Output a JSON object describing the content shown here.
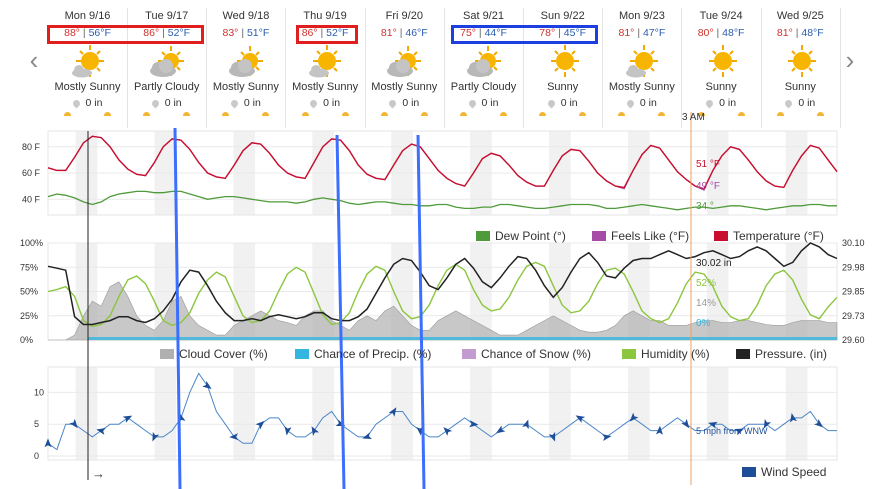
{
  "nav": {
    "prev_icon": "chevron-left-icon",
    "next_icon": "chevron-right-icon",
    "prev": "‹",
    "next": "›"
  },
  "days": [
    {
      "date": "Mon 9/16",
      "hi": "88°",
      "lo": "56°F",
      "cond": "Mostly Sunny",
      "precip": "0 in",
      "icon": "sun-icon"
    },
    {
      "date": "Tue 9/17",
      "hi": "86°",
      "lo": "52°F",
      "cond": "Partly Cloudy",
      "precip": "0 in",
      "icon": "sun-cloud-icon"
    },
    {
      "date": "Wed 9/18",
      "hi": "83°",
      "lo": "51°F",
      "cond": "Mostly Sunny",
      "precip": "0 in",
      "icon": "sun-cloud-icon"
    },
    {
      "date": "Thu 9/19",
      "hi": "86°",
      "lo": "52°F",
      "cond": "Mostly Sunny",
      "precip": "0 in",
      "icon": "sun-icon"
    },
    {
      "date": "Fri 9/20",
      "hi": "81°",
      "lo": "46°F",
      "cond": "Mostly Sunny",
      "precip": "0 in",
      "icon": "sun-cloud-icon"
    },
    {
      "date": "Sat 9/21",
      "hi": "75°",
      "lo": "44°F",
      "cond": "Partly Cloudy",
      "precip": "0 in",
      "icon": "sun-cloud-icon"
    },
    {
      "date": "Sun 9/22",
      "hi": "78°",
      "lo": "45°F",
      "cond": "Sunny",
      "precip": "0 in",
      "icon": "sun-icon"
    },
    {
      "date": "Mon 9/23",
      "hi": "81°",
      "lo": "47°F",
      "cond": "Mostly Sunny",
      "precip": "0 in",
      "icon": "sun-icon"
    },
    {
      "date": "Tue 9/24",
      "hi": "80°",
      "lo": "48°F",
      "cond": "Sunny",
      "precip": "0 in",
      "icon": "sun-icon"
    },
    {
      "date": "Wed 9/25",
      "hi": "81°",
      "lo": "48°F",
      "cond": "Sunny",
      "precip": "0 in",
      "icon": "sun-icon"
    }
  ],
  "cursor_time": "3 AM",
  "colors": {
    "temperature": "#c8102e",
    "feels_like": "#a64ca6",
    "dew_point": "#4f9a3a",
    "cloud_cover": "#b0b0b0",
    "precip_chance": "#35b6e0",
    "snow_chance": "#c49bd0",
    "humidity": "#8cc63f",
    "pressure": "#222222",
    "wind": "#4a86c8",
    "wind_arrow": "#1f4e99",
    "box_red": "#e01e1e",
    "box_blue": "#1e3fe0",
    "overlay_line": "#3d6fff",
    "cursor_line": "#f0a060"
  },
  "chart_data": [
    {
      "type": "line",
      "y_ticks": [
        "80 F",
        "60 F",
        "40 F"
      ],
      "ylim": [
        28,
        92
      ],
      "series": [
        {
          "name": "Temperature (°F)",
          "values": [
            64,
            62,
            62,
            72,
            83,
            88,
            87,
            80,
            70,
            63,
            59,
            58,
            68,
            80,
            86,
            85,
            78,
            68,
            60,
            57,
            56,
            66,
            77,
            83,
            82,
            75,
            66,
            60,
            57,
            56,
            68,
            80,
            86,
            85,
            77,
            66,
            59,
            56,
            55,
            66,
            77,
            82,
            80,
            71,
            62,
            56,
            52,
            50,
            60,
            71,
            75,
            73,
            66,
            58,
            53,
            50,
            50,
            62,
            73,
            78,
            77,
            69,
            60,
            54,
            50,
            49,
            62,
            74,
            81,
            79,
            70,
            61,
            55,
            50,
            48,
            62,
            73,
            80,
            78,
            70,
            61,
            54,
            50,
            49,
            62,
            73,
            81,
            79,
            70,
            61
          ]
        },
        {
          "name": "Feels Like (°F)",
          "values": [
            64,
            62,
            62,
            72,
            83,
            88,
            87,
            80,
            70,
            63,
            59,
            58,
            68,
            80,
            86,
            85,
            78,
            68,
            60,
            57,
            56,
            66,
            77,
            83,
            82,
            75,
            66,
            60,
            57,
            56,
            68,
            80,
            86,
            85,
            77,
            66,
            59,
            56,
            55,
            66,
            77,
            82,
            80,
            71,
            62,
            56,
            52,
            50,
            60,
            71,
            75,
            73,
            66,
            58,
            53,
            50,
            50,
            62,
            73,
            78,
            77,
            69,
            60,
            54,
            50,
            48,
            62,
            74,
            81,
            79,
            70,
            61,
            55,
            50,
            47,
            62,
            73,
            80,
            78,
            70,
            61,
            54,
            50,
            49,
            62,
            73,
            81,
            79,
            70,
            61
          ]
        },
        {
          "name": "Dew Point (°)",
          "values": [
            42,
            44,
            43,
            41,
            38,
            36,
            38,
            42,
            44,
            45,
            46,
            46,
            45,
            45,
            46,
            46,
            44,
            42,
            40,
            41,
            42,
            42,
            41,
            40,
            39,
            38,
            38,
            38,
            37,
            38,
            40,
            41,
            40,
            39,
            37,
            36,
            37,
            38,
            38,
            37,
            36,
            36,
            35,
            35,
            36,
            36,
            34,
            33,
            33,
            34,
            34,
            36,
            36,
            35,
            34,
            33,
            33,
            34,
            35,
            36,
            36,
            36,
            35,
            33,
            33,
            34,
            35,
            36,
            35,
            34,
            33,
            32,
            33,
            34,
            34,
            33,
            34,
            35,
            35,
            34,
            33,
            32,
            33,
            34,
            35,
            35,
            36,
            36,
            35,
            35
          ]
        }
      ],
      "readouts": {
        "temperature": "51 °F",
        "feels_like": "49 °F",
        "dew_point": "34 °"
      },
      "legend": [
        "Dew Point (°)",
        "Feels Like (°F)",
        "Temperature (°F)"
      ]
    },
    {
      "type": "line",
      "y_ticks_left": [
        "100%",
        "75%",
        "50%",
        "25%",
        "0%"
      ],
      "y_ticks_right": [
        "30.10",
        "29.98",
        "29.85",
        "29.73",
        "29.60"
      ],
      "pressure_range": [
        29.6,
        30.1
      ],
      "series": [
        {
          "name": "Cloud Cover (%)",
          "values": [
            0,
            0,
            0,
            5,
            25,
            40,
            35,
            55,
            60,
            45,
            25,
            15,
            10,
            20,
            40,
            45,
            25,
            15,
            10,
            5,
            5,
            15,
            20,
            25,
            30,
            25,
            20,
            18,
            15,
            25,
            30,
            30,
            20,
            15,
            10,
            20,
            25,
            20,
            30,
            35,
            25,
            15,
            10,
            10,
            20,
            25,
            30,
            25,
            20,
            15,
            10,
            5,
            5,
            5,
            10,
            15,
            20,
            25,
            20,
            15,
            10,
            8,
            8,
            10,
            15,
            25,
            30,
            25,
            20,
            20,
            15,
            15,
            15,
            18,
            20,
            20,
            18,
            18,
            20,
            20,
            18,
            16,
            15,
            15,
            18,
            20,
            20,
            20,
            18,
            18
          ]
        },
        {
          "name": "Chance of Precip. (%)",
          "values": [
            0,
            0,
            0,
            0,
            0,
            0,
            0,
            0,
            0,
            0,
            0,
            0,
            0,
            0,
            0,
            0,
            0,
            0,
            0,
            0,
            0,
            0,
            0,
            0,
            0,
            0,
            0,
            0,
            0,
            0,
            0,
            0,
            0,
            0,
            0,
            0,
            0,
            0,
            0,
            0,
            0,
            0,
            0,
            0,
            0,
            0,
            0,
            0,
            0,
            0,
            0,
            0,
            0,
            0,
            0,
            0,
            0,
            0,
            0,
            0,
            0,
            0,
            0,
            0,
            0,
            0,
            0,
            0,
            0,
            0,
            0,
            0,
            0,
            0,
            0,
            0,
            0,
            0,
            0,
            0,
            0,
            0,
            0,
            0,
            0,
            0,
            0,
            0,
            0,
            0
          ]
        },
        {
          "name": "Chance of Snow (%)",
          "values": [
            0,
            0,
            0,
            0,
            0,
            0,
            0,
            0,
            0,
            0,
            0,
            0,
            0,
            0,
            0,
            0,
            0,
            0,
            0,
            0,
            0,
            0,
            0,
            0,
            0,
            0,
            0,
            0,
            0,
            0,
            0,
            0,
            0,
            0,
            0,
            0,
            0,
            0,
            0,
            0,
            0,
            0,
            0,
            0,
            0,
            0,
            0,
            0,
            0,
            0,
            0,
            0,
            0,
            0,
            0,
            0,
            0,
            0,
            0,
            0,
            0,
            0,
            0,
            0,
            0,
            0,
            0,
            0,
            0,
            0,
            0,
            0,
            0,
            0,
            0,
            0,
            0,
            0,
            0,
            0,
            0,
            0,
            0,
            0,
            0,
            0,
            0,
            0,
            0,
            0
          ]
        },
        {
          "name": "Humidity (%)",
          "values": [
            50,
            52,
            55,
            45,
            20,
            14,
            16,
            25,
            45,
            62,
            66,
            58,
            40,
            20,
            15,
            18,
            28,
            48,
            62,
            70,
            65,
            45,
            25,
            18,
            20,
            30,
            50,
            68,
            75,
            70,
            48,
            26,
            16,
            18,
            28,
            50,
            68,
            76,
            72,
            50,
            30,
            22,
            24,
            36,
            56,
            72,
            78,
            72,
            52,
            36,
            30,
            32,
            44,
            62,
            76,
            80,
            76,
            56,
            36,
            28,
            30,
            40,
            58,
            72,
            74,
            68,
            50,
            30,
            22,
            18,
            22,
            38,
            58,
            70,
            68,
            55,
            35,
            24,
            20,
            22,
            36,
            56,
            68,
            72,
            62,
            42,
            26,
            22,
            34,
            44
          ]
        },
        {
          "name": "Pressure. (in)",
          "values": [
            29.98,
            29.97,
            29.96,
            29.72,
            29.68,
            29.68,
            29.69,
            29.7,
            29.72,
            29.72,
            29.7,
            29.69,
            29.71,
            29.75,
            29.81,
            29.9,
            29.96,
            29.95,
            29.88,
            29.8,
            29.74,
            29.7,
            29.7,
            29.71,
            29.7,
            29.72,
            29.73,
            29.72,
            29.71,
            29.72,
            29.74,
            29.74,
            29.71,
            29.7,
            29.7,
            29.72,
            29.76,
            29.84,
            29.92,
            29.99,
            30.02,
            30.01,
            29.95,
            29.88,
            29.86,
            29.92,
            29.99,
            30.02,
            29.97,
            29.9,
            29.87,
            29.92,
            29.98,
            30.03,
            30.02,
            29.96,
            29.88,
            29.82,
            29.87,
            29.95,
            30.02,
            30.05,
            30.0,
            29.93,
            29.92,
            29.97,
            30.01,
            30.02,
            30.02,
            30.04,
            30.06,
            30.04,
            30.02,
            30.03,
            30.05,
            30.06,
            30.04,
            30.02,
            30.03,
            30.06,
            30.08,
            30.06,
            30.02,
            29.98,
            30.0,
            30.06,
            30.1,
            30.08,
            30.04,
            30.02
          ]
        }
      ],
      "readouts": {
        "pressure": "30.02 in",
        "humidity": "52%",
        "cloud_cover": "14%",
        "precip": "0%"
      },
      "legend": [
        "Cloud Cover (%)",
        "Chance of Precip. (%)",
        "Chance of Snow (%)",
        "Humidity (%)",
        "Pressure. (in)"
      ]
    },
    {
      "type": "line",
      "y_ticks": [
        "10",
        "5",
        "0"
      ],
      "ylim": [
        0,
        14
      ],
      "series": [
        {
          "name": "Wind Speed",
          "values": [
            2,
            1,
            5,
            5,
            4,
            3,
            4,
            5,
            5,
            6,
            5,
            4,
            3,
            3,
            4,
            6,
            10,
            13,
            11,
            7,
            5,
            3,
            2,
            2,
            5,
            6,
            6,
            4,
            3,
            3,
            4,
            6,
            7,
            5,
            4,
            3,
            3,
            5,
            6,
            7,
            7,
            5,
            4,
            3,
            3,
            4,
            5,
            6,
            5,
            4,
            3,
            4,
            5,
            5,
            5,
            4,
            3,
            3,
            4,
            5,
            6,
            5,
            4,
            3,
            4,
            5,
            6,
            5,
            4,
            4,
            5,
            6,
            5,
            4,
            4,
            5,
            5,
            4,
            4,
            5,
            5,
            5,
            4,
            5,
            6,
            6,
            7,
            5,
            4,
            4
          ]
        }
      ],
      "readouts": {
        "wind": "5 mph from WNW"
      },
      "legend": [
        "Wind Speed"
      ],
      "start_arrow": "→"
    }
  ]
}
